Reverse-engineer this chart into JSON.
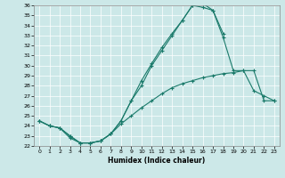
{
  "title": "",
  "xlabel": "Humidex (Indice chaleur)",
  "bg_color": "#cce8e8",
  "line_color": "#1a7a6a",
  "xlim": [
    -0.5,
    23.5
  ],
  "ylim": [
    22,
    36
  ],
  "xticks": [
    0,
    1,
    2,
    3,
    4,
    5,
    6,
    7,
    8,
    9,
    10,
    11,
    12,
    13,
    14,
    15,
    16,
    17,
    18,
    19,
    20,
    21,
    22,
    23
  ],
  "yticks": [
    22,
    23,
    24,
    25,
    26,
    27,
    28,
    29,
    30,
    31,
    32,
    33,
    34,
    35,
    36
  ],
  "line1_x": [
    0,
    1,
    2,
    3,
    4,
    5,
    6,
    7,
    8,
    9,
    10,
    11,
    12,
    13,
    14,
    15,
    16,
    17,
    18
  ],
  "line1_y": [
    24.5,
    24.0,
    23.8,
    22.8,
    22.3,
    22.3,
    22.5,
    23.2,
    24.5,
    26.5,
    28.5,
    30.2,
    31.8,
    33.2,
    34.5,
    36.0,
    36.2,
    35.5,
    33.2
  ],
  "line2_x": [
    0,
    1,
    2,
    3,
    4,
    5,
    6,
    7,
    8,
    9,
    10,
    11,
    12,
    13,
    14,
    15,
    16,
    17,
    18,
    19,
    20,
    21,
    22,
    23
  ],
  "line2_y": [
    24.5,
    24.0,
    23.8,
    23.0,
    22.3,
    22.3,
    22.5,
    23.2,
    24.2,
    25.0,
    25.8,
    26.5,
    27.2,
    27.8,
    28.2,
    28.5,
    28.8,
    29.0,
    29.2,
    29.3,
    29.5,
    29.5,
    26.5,
    26.5
  ],
  "line3_x": [
    0,
    1,
    2,
    3,
    4,
    5,
    6,
    7,
    8,
    9,
    10,
    11,
    12,
    13,
    14,
    15,
    16,
    17,
    18,
    19,
    20,
    21,
    22,
    23
  ],
  "line3_y": [
    24.5,
    24.0,
    23.8,
    23.0,
    22.3,
    22.3,
    22.5,
    23.2,
    24.5,
    26.5,
    28.0,
    30.0,
    31.5,
    33.0,
    34.5,
    36.0,
    35.8,
    35.5,
    32.8,
    29.5,
    29.5,
    27.5,
    27.0,
    26.5
  ]
}
